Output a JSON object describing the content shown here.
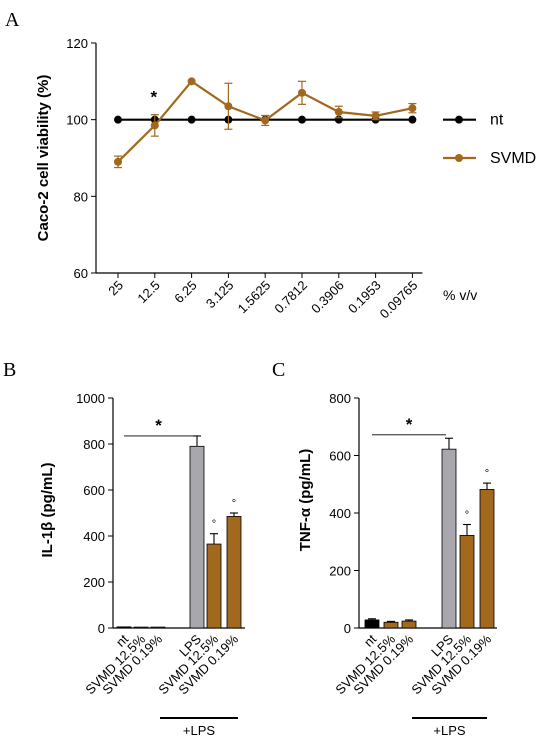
{
  "colors": {
    "svmd": "#a2681d",
    "nt": "#000000",
    "lps": "#a7a7ad"
  },
  "chart_data": [
    {
      "panel": "A",
      "type": "line",
      "ylabel": "Caco-2 cell viability (%)",
      "x_unit": "% v/v",
      "categories": [
        "25",
        "12.5",
        "6.25",
        "3.125",
        "1.5625",
        "0.7812",
        "0.3906",
        "0.1953",
        "0.09765"
      ],
      "ylim": [
        60,
        120
      ],
      "yticks": [
        "60",
        "80",
        "100",
        "120"
      ],
      "series": [
        {
          "name": "nt",
          "values": [
            100,
            100,
            100,
            100,
            100,
            100,
            100,
            100,
            100
          ],
          "errors": [
            0,
            0,
            0,
            0,
            0,
            0,
            0,
            0,
            0
          ]
        },
        {
          "name": "SVMD",
          "values": [
            89,
            98.5,
            110,
            103.5,
            99.8,
            107,
            102,
            101,
            103
          ],
          "errors": [
            1.5,
            2.8,
            0,
            6,
            1.3,
            3,
            1.5,
            1,
            1.2
          ]
        }
      ],
      "annotations": [
        {
          "text": "*",
          "category": "12.5"
        }
      ]
    },
    {
      "panel": "B",
      "type": "bar",
      "ylabel": "IL-1β (pg/mL)",
      "categories": [
        "nt",
        "SVMD 12.5%",
        "SVMD 0.19%",
        "LPS",
        "SVMD 12.5%",
        "SVMD 0.19%"
      ],
      "values": [
        5,
        4,
        4,
        790,
        365,
        485
      ],
      "errors": [
        0,
        0,
        0,
        45,
        45,
        15
      ],
      "ylim": [
        0,
        1000
      ],
      "yticks": [
        "0",
        "200",
        "400",
        "600",
        "800",
        "1000"
      ],
      "group_label": "+LPS",
      "significance": "*",
      "markers": [
        "",
        "",
        "",
        "",
        "°",
        "°"
      ]
    },
    {
      "panel": "C",
      "type": "bar",
      "ylabel": "TNF-α (pg/mL)",
      "categories": [
        "nt",
        "SVMD 12.5%",
        "SVMD 0.19%",
        "LPS",
        "SVMD 12.5%",
        "SVMD 0.19%"
      ],
      "values": [
        28,
        20,
        24,
        622,
        322,
        482
      ],
      "errors": [
        4,
        3,
        4,
        38,
        38,
        22
      ],
      "ylim": [
        0,
        800
      ],
      "yticks": [
        "0",
        "200",
        "400",
        "600",
        "800"
      ],
      "group_label": "+LPS",
      "significance": "*",
      "markers": [
        "",
        "",
        "",
        "",
        "°",
        "°"
      ]
    }
  ]
}
